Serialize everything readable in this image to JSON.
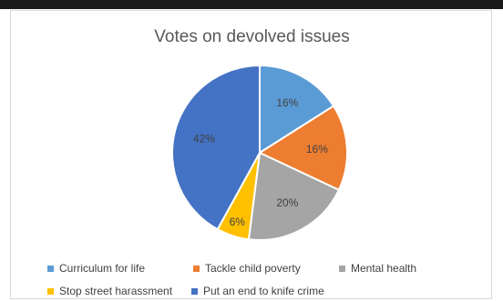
{
  "chart_data": {
    "type": "pie",
    "title": "Votes on devolved issues",
    "slices": [
      {
        "label": "Curriculum for life",
        "value": 16,
        "display": "16%",
        "color": "#5B9BD5"
      },
      {
        "label": "Tackle child poverty",
        "value": 16,
        "display": "16%",
        "color": "#ED7D31"
      },
      {
        "label": "Mental health",
        "value": 20,
        "display": "20%",
        "color": "#A5A5A5"
      },
      {
        "label": "Stop street harassment",
        "value": 6,
        "display": "6%",
        "color": "#FFC000"
      },
      {
        "label": "Put an end to knife crime",
        "value": 42,
        "display": "42%",
        "color": "#4472C4"
      }
    ],
    "legend_position": "bottom"
  }
}
